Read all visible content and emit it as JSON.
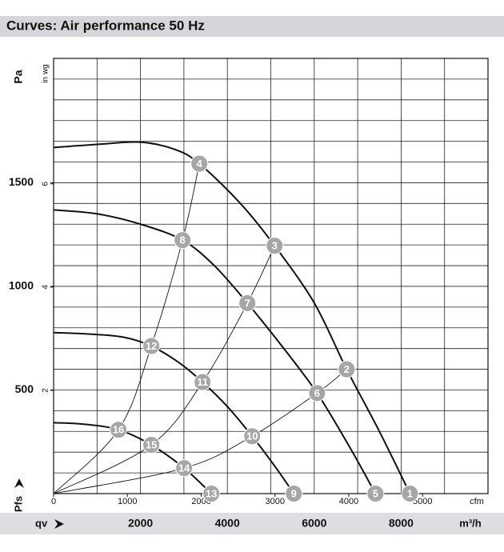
{
  "chart_data": {
    "type": "line",
    "title": "Curves: Air performance 50 Hz",
    "y_label": "Pa",
    "y2_label": "in wg",
    "y_symbol": "Pfs",
    "x_symbol": "qv",
    "x_label": "m³/h",
    "x2_label": "cfm",
    "xlim": [
      0,
      10000
    ],
    "xticks": [
      2000,
      4000,
      6000,
      8000
    ],
    "xgrid": [
      0,
      1000,
      2000,
      3000,
      4000,
      5000,
      6000,
      7000,
      8000,
      9000,
      10000
    ],
    "x2lim": [
      0,
      5886
    ],
    "x2ticks": [
      0,
      1000,
      2000,
      3000,
      4000,
      5000
    ],
    "ylim": [
      0,
      2100
    ],
    "yticks": [
      500,
      1000,
      1500
    ],
    "ygrid": [
      0,
      100,
      200,
      300,
      400,
      500,
      600,
      700,
      800,
      900,
      1000,
      1100,
      1200,
      1300,
      1400,
      1500,
      1600,
      1700,
      1800,
      1900,
      2000,
      2100
    ],
    "y2lim": [
      0,
      8.43
    ],
    "y2ticks": [
      2,
      4,
      6
    ],
    "color": "#111111",
    "series": [
      {
        "x": [
          0,
          1000,
          2000,
          2800,
          3355,
          4300,
          5088,
          6000,
          6746,
          7500,
          8203
        ],
        "values": [
          1670,
          1685,
          1696,
          1660,
          1592,
          1400,
          1196,
          920,
          600,
          300,
          0
        ]
      },
      {
        "x": [
          0,
          1000,
          2000,
          2968,
          3700,
          4461,
          5300,
          6065,
          6800,
          7410
        ],
        "values": [
          1369,
          1350,
          1300,
          1223,
          1100,
          919,
          700,
          485,
          230,
          0
        ]
      },
      {
        "x": [
          0,
          800,
          1600,
          2249,
          2900,
          3429,
          4000,
          4571,
          5100,
          5530
        ],
        "values": [
          777,
          770,
          755,
          712,
          630,
          538,
          420,
          277,
          130,
          0
        ]
      },
      {
        "x": [
          0,
          700,
          1493,
          2249,
          3005,
          3631
        ],
        "values": [
          342,
          335,
          308,
          235,
          123,
          0
        ]
      }
    ],
    "system_curves": [
      {
        "x": [
          0,
          1493,
          2249,
          2968,
          3355
        ],
        "values": [
          0,
          308,
          712,
          1223,
          1592
        ]
      },
      {
        "x": [
          0,
          2249,
          3429,
          4461,
          5088
        ],
        "values": [
          0,
          235,
          538,
          919,
          1196
        ]
      },
      {
        "x": [
          0,
          3005,
          4571,
          6065,
          6746
        ],
        "values": [
          0,
          123,
          277,
          485,
          600
        ]
      }
    ],
    "operating_points": {
      "labels": [
        "1",
        "2",
        "3",
        "4",
        "5",
        "6",
        "7",
        "8",
        "9",
        "10",
        "11",
        "12",
        "13",
        "14",
        "15",
        "16"
      ],
      "x": [
        8203,
        6746,
        5088,
        3355,
        7410,
        6065,
        4461,
        2968,
        5530,
        4571,
        3429,
        2249,
        3631,
        3005,
        2249,
        1493
      ],
      "y": [
        0,
        600,
        1196,
        1592,
        0,
        485,
        919,
        1223,
        0,
        277,
        538,
        712,
        0,
        123,
        235,
        308
      ]
    }
  }
}
